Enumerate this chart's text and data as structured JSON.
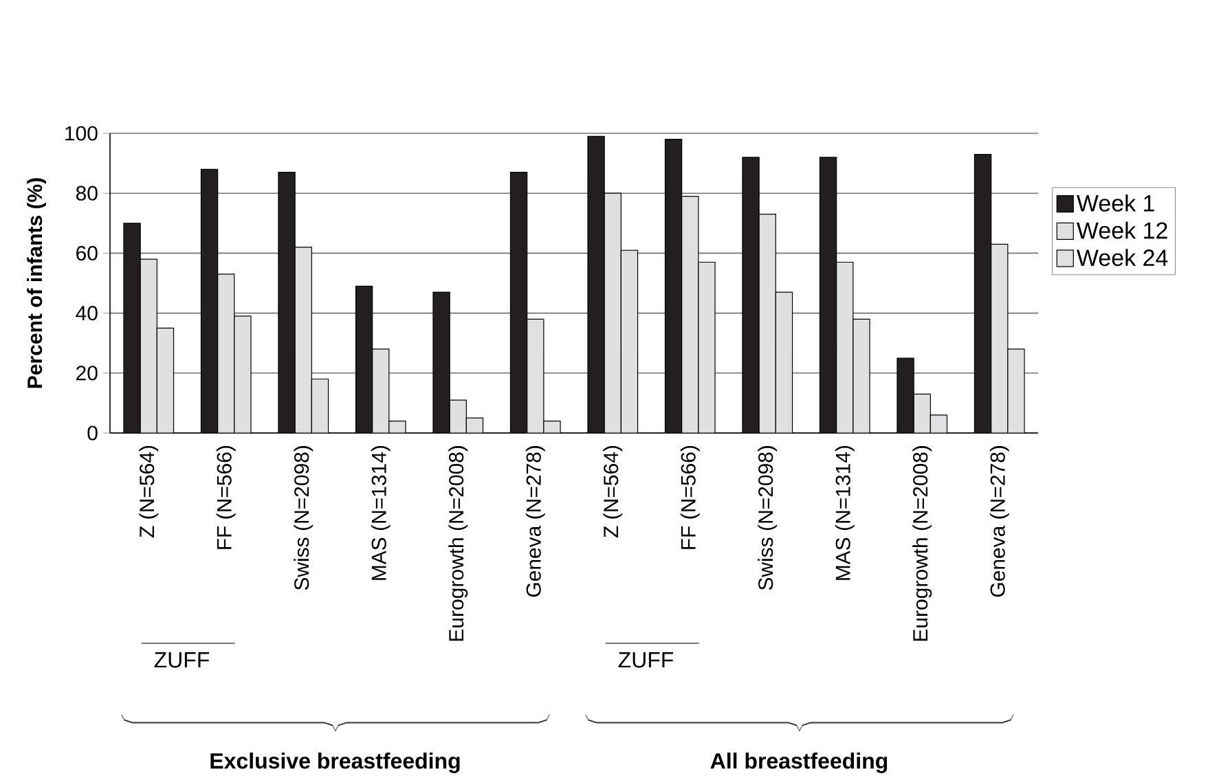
{
  "chart_data": {
    "type": "bar",
    "ylabel": "Percent of infants (%)",
    "categories": [
      "Z (N=564)",
      "FF (N=566)",
      "Swiss (N=2098)",
      "MAS (N=1314)",
      "Eurogrowth (N=2008)",
      "Geneva (N=278)",
      "Z (N=564)",
      "FF (N=566)",
      "Swiss (N=2098)",
      "MAS (N=1314)",
      "Eurogrowth (N=2008)",
      "Geneva (N=278)"
    ],
    "series": [
      {
        "name": "Week 1",
        "color": "#231f20",
        "values": [
          70,
          88,
          87,
          49,
          47,
          87,
          99,
          98,
          92,
          92,
          25,
          93
        ]
      },
      {
        "name": "Week 12",
        "color": "#dfe0e2",
        "values": [
          58,
          53,
          62,
          28,
          11,
          38,
          80,
          79,
          73,
          57,
          13,
          63
        ]
      },
      {
        "name": "Week 24",
        "color": "#dfe0e2",
        "values": [
          35,
          39,
          18,
          4,
          5,
          4,
          61,
          57,
          47,
          38,
          6,
          28
        ]
      }
    ],
    "ylim": [
      0,
      100
    ],
    "yticks": [
      0,
      20,
      40,
      60,
      80,
      100
    ],
    "grid": "y",
    "legend": "right",
    "annotations": [
      "ZUFF",
      "ZUFF",
      "Exclusive breastfeeding",
      "All breastfeeding"
    ]
  }
}
